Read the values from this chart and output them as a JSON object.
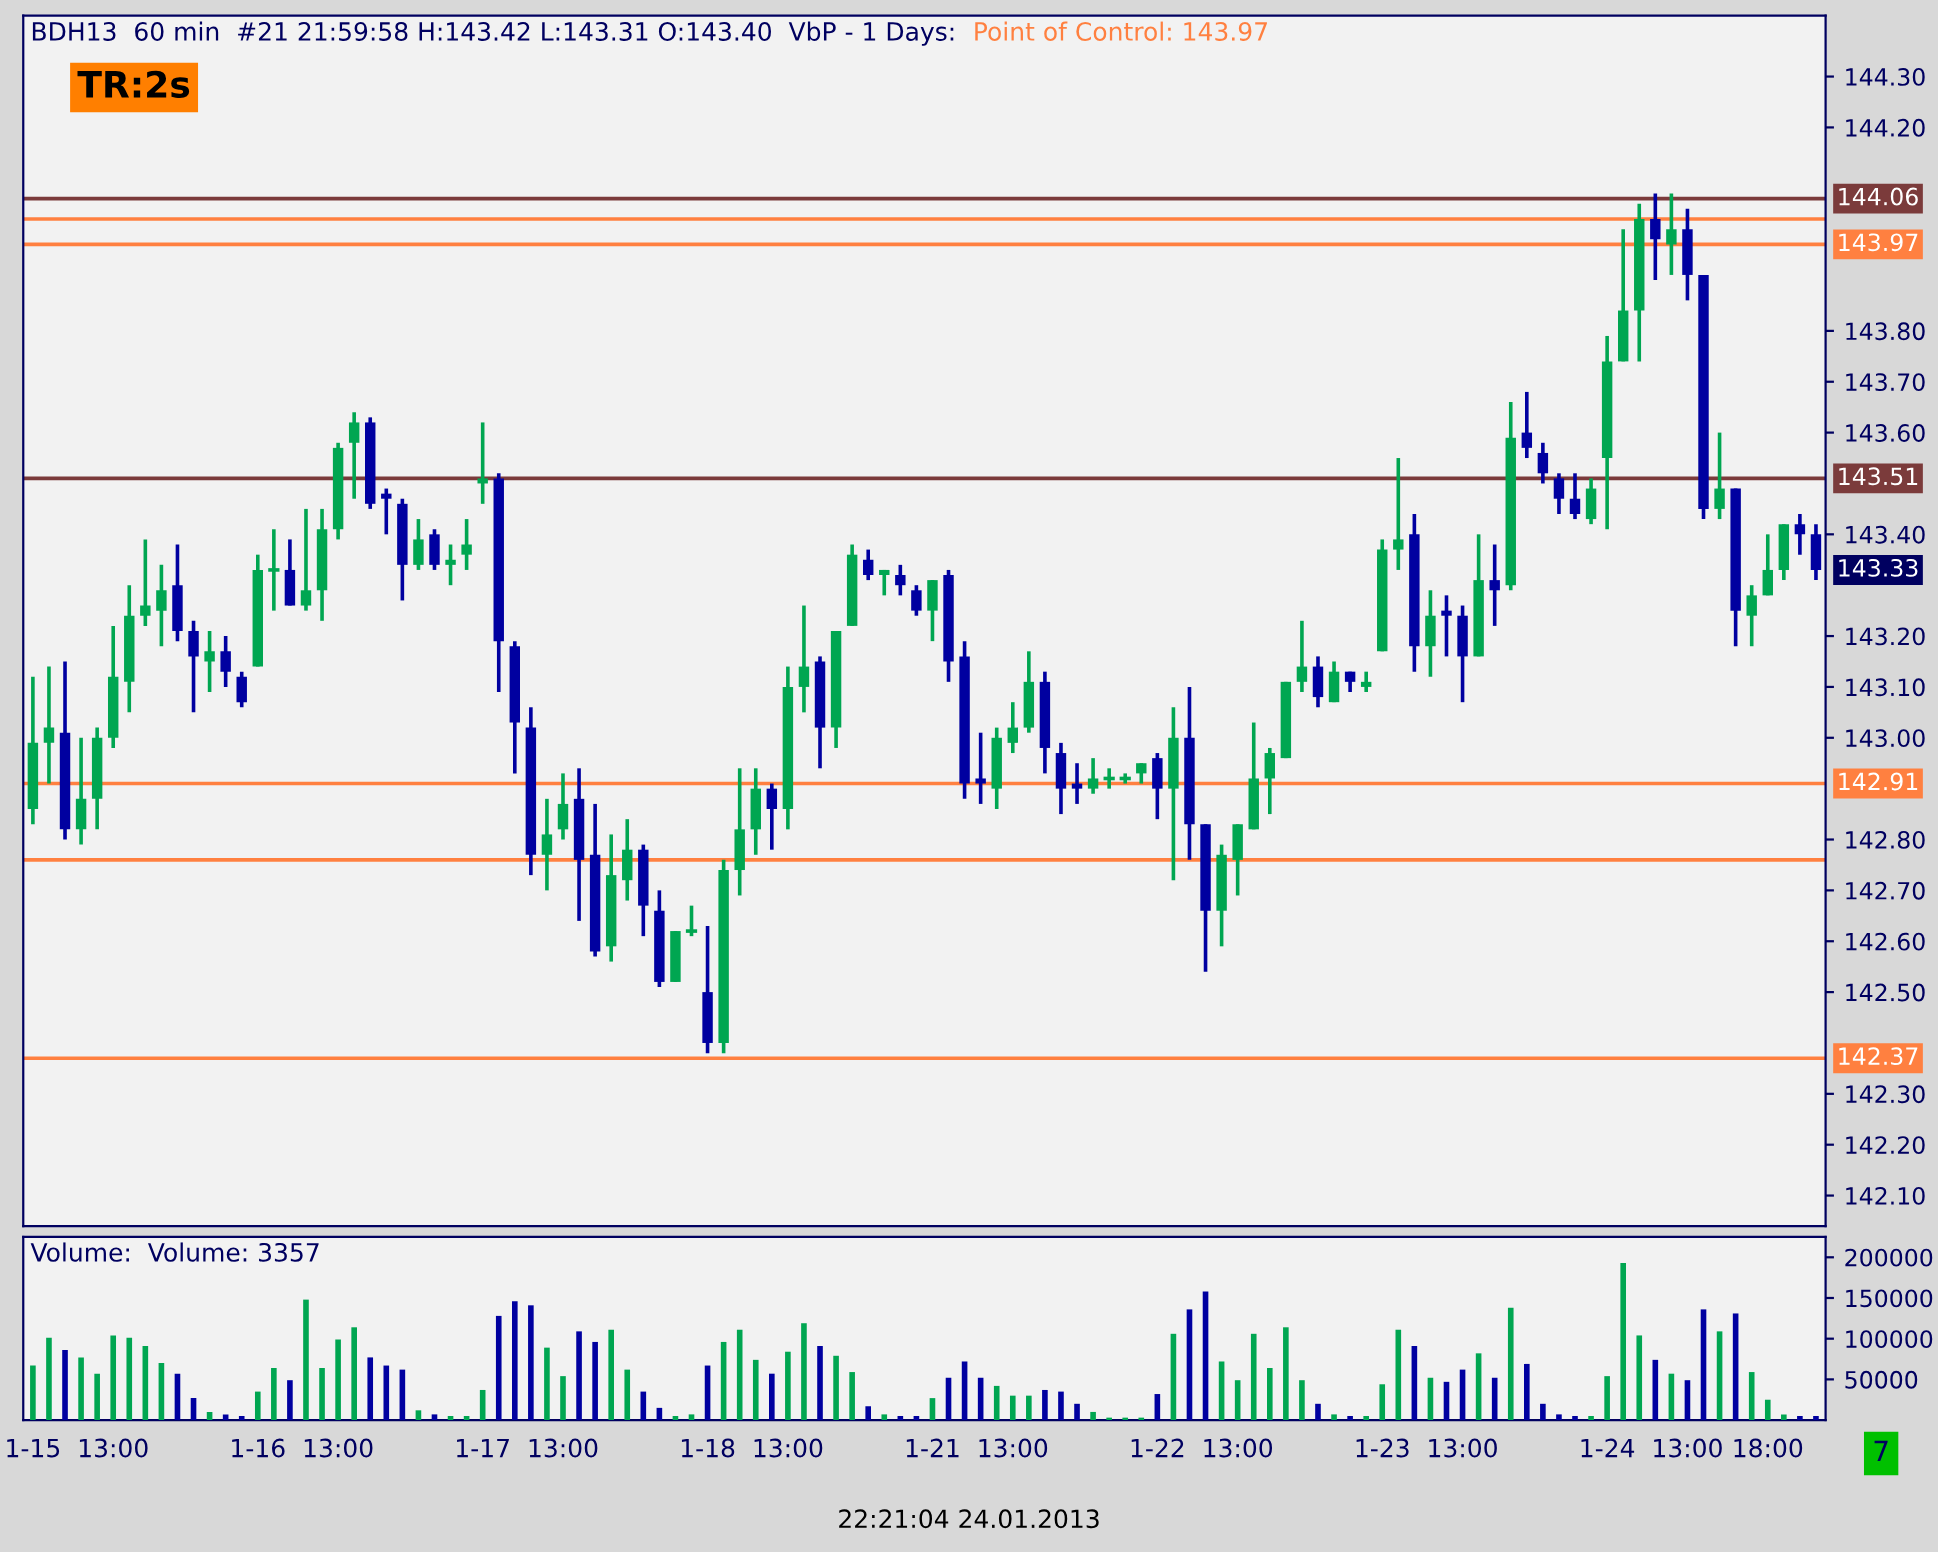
{
  "chart_data": [
    {
      "type": "candlestick",
      "title": "BDH13  60 min  #21 21:59:58 H:143.42 L:143.31 O:143.40  VbP - 1 Days:",
      "categories": [
        null,
        null,
        null,
        null,
        null,
        null,
        null,
        null,
        null,
        null,
        null,
        null,
        null,
        null,
        null,
        null,
        null,
        null,
        null,
        null,
        null,
        null,
        null,
        null,
        null,
        null,
        null,
        null,
        null,
        null,
        null,
        null,
        null,
        null,
        null,
        null,
        null,
        null,
        null,
        null,
        null,
        null,
        null,
        null,
        null,
        null,
        null,
        null,
        null,
        null,
        null,
        null,
        null,
        null,
        null,
        null,
        null,
        null,
        null,
        null,
        null,
        null,
        null,
        null,
        null,
        null,
        null,
        null,
        null,
        null,
        null,
        null,
        null,
        null,
        null,
        null,
        null,
        null,
        null,
        null,
        null,
        null,
        null,
        null,
        null,
        null,
        null,
        null,
        null,
        null,
        null,
        null,
        null,
        null,
        null,
        null,
        null,
        null,
        null,
        null,
        null,
        null,
        null,
        null,
        null,
        null,
        null,
        null,
        null,
        null,
        null,
        null
      ],
      "ohlc": [
        [
          142.86,
          143.12,
          142.83,
          142.99
        ],
        [
          142.99,
          143.14,
          142.91,
          143.02
        ],
        [
          143.01,
          143.15,
          142.8,
          142.82
        ],
        [
          142.82,
          143.0,
          142.79,
          142.88
        ],
        [
          142.88,
          143.02,
          142.82,
          143.0
        ],
        [
          143.0,
          143.22,
          142.98,
          143.12
        ],
        [
          143.11,
          143.3,
          143.05,
          143.24
        ],
        [
          143.24,
          143.39,
          143.22,
          143.26
        ],
        [
          143.25,
          143.34,
          143.18,
          143.29
        ],
        [
          143.3,
          143.38,
          143.19,
          143.21
        ],
        [
          143.21,
          143.23,
          143.05,
          143.16
        ],
        [
          143.15,
          143.21,
          143.09,
          143.17
        ],
        [
          143.17,
          143.2,
          143.1,
          143.13
        ],
        [
          143.12,
          143.13,
          143.06,
          143.07
        ],
        [
          143.14,
          143.36,
          143.14,
          143.33
        ],
        [
          143.33,
          143.41,
          143.25,
          143.33
        ],
        [
          143.33,
          143.39,
          143.26,
          143.26
        ],
        [
          143.26,
          143.45,
          143.25,
          143.29
        ],
        [
          143.29,
          143.45,
          143.23,
          143.41
        ],
        [
          143.41,
          143.58,
          143.39,
          143.57
        ],
        [
          143.58,
          143.64,
          143.47,
          143.62
        ],
        [
          143.62,
          143.63,
          143.45,
          143.46
        ],
        [
          143.48,
          143.49,
          143.4,
          143.47
        ],
        [
          143.46,
          143.47,
          143.27,
          143.34
        ],
        [
          143.34,
          143.43,
          143.33,
          143.39
        ],
        [
          143.4,
          143.41,
          143.33,
          143.34
        ],
        [
          143.34,
          143.38,
          143.3,
          143.35
        ],
        [
          143.36,
          143.43,
          143.33,
          143.38
        ],
        [
          143.5,
          143.62,
          143.46,
          143.51
        ],
        [
          143.51,
          143.52,
          143.09,
          143.19
        ],
        [
          143.18,
          143.19,
          142.93,
          143.03
        ],
        [
          143.02,
          143.06,
          142.73,
          142.77
        ],
        [
          142.77,
          142.88,
          142.7,
          142.81
        ],
        [
          142.82,
          142.93,
          142.8,
          142.87
        ],
        [
          142.88,
          142.94,
          142.64,
          142.76
        ],
        [
          142.77,
          142.87,
          142.57,
          142.58
        ],
        [
          142.59,
          142.81,
          142.56,
          142.73
        ],
        [
          142.72,
          142.84,
          142.68,
          142.78
        ],
        [
          142.78,
          142.79,
          142.61,
          142.67
        ],
        [
          142.66,
          142.7,
          142.51,
          142.52
        ],
        [
          142.52,
          142.62,
          142.52,
          142.62
        ],
        [
          142.62,
          142.67,
          142.61,
          142.62
        ],
        [
          142.5,
          142.63,
          142.38,
          142.4
        ],
        [
          142.4,
          142.76,
          142.38,
          142.74
        ],
        [
          142.74,
          142.94,
          142.69,
          142.82
        ],
        [
          142.82,
          142.94,
          142.77,
          142.9
        ],
        [
          142.9,
          142.91,
          142.78,
          142.86
        ],
        [
          142.86,
          143.14,
          142.82,
          143.1
        ],
        [
          143.1,
          143.26,
          143.05,
          143.14
        ],
        [
          143.15,
          143.16,
          142.94,
          143.02
        ],
        [
          143.02,
          143.21,
          142.98,
          143.21
        ],
        [
          143.22,
          143.38,
          143.22,
          143.36
        ],
        [
          143.35,
          143.37,
          143.31,
          143.32
        ],
        [
          143.32,
          143.33,
          143.28,
          143.33
        ],
        [
          143.32,
          143.34,
          143.28,
          143.3
        ],
        [
          143.29,
          143.3,
          143.24,
          143.25
        ],
        [
          143.25,
          143.31,
          143.19,
          143.31
        ],
        [
          143.32,
          143.33,
          143.11,
          143.15
        ],
        [
          143.16,
          143.19,
          142.88,
          142.91
        ],
        [
          142.92,
          143.01,
          142.87,
          142.91
        ],
        [
          142.9,
          143.02,
          142.86,
          143.0
        ],
        [
          142.99,
          143.07,
          142.97,
          143.02
        ],
        [
          143.02,
          143.17,
          143.01,
          143.11
        ],
        [
          143.11,
          143.13,
          142.93,
          142.98
        ],
        [
          142.97,
          142.99,
          142.85,
          142.9
        ],
        [
          142.91,
          142.95,
          142.87,
          142.9
        ],
        [
          142.9,
          142.96,
          142.89,
          142.92
        ],
        [
          142.92,
          142.94,
          142.9,
          142.92
        ],
        [
          142.92,
          142.93,
          142.91,
          142.92
        ],
        [
          142.93,
          142.95,
          142.91,
          142.95
        ],
        [
          142.96,
          142.97,
          142.84,
          142.9
        ],
        [
          142.9,
          143.06,
          142.72,
          143.0
        ],
        [
          143.0,
          143.1,
          142.76,
          142.83
        ],
        [
          142.83,
          142.83,
          142.54,
          142.66
        ],
        [
          142.66,
          142.79,
          142.59,
          142.77
        ],
        [
          142.76,
          142.83,
          142.69,
          142.83
        ],
        [
          142.82,
          143.03,
          142.82,
          142.92
        ],
        [
          142.92,
          142.98,
          142.85,
          142.97
        ],
        [
          142.96,
          143.11,
          142.96,
          143.11
        ],
        [
          143.11,
          143.23,
          143.09,
          143.14
        ],
        [
          143.14,
          143.16,
          143.06,
          143.08
        ],
        [
          143.07,
          143.15,
          143.07,
          143.13
        ],
        [
          143.13,
          143.13,
          143.09,
          143.11
        ],
        [
          143.1,
          143.13,
          143.09,
          143.11
        ],
        [
          143.17,
          143.39,
          143.17,
          143.37
        ],
        [
          143.37,
          143.55,
          143.33,
          143.39
        ],
        [
          143.4,
          143.44,
          143.13,
          143.18
        ],
        [
          143.18,
          143.29,
          143.12,
          143.24
        ],
        [
          143.25,
          143.28,
          143.16,
          143.24
        ],
        [
          143.24,
          143.26,
          143.07,
          143.16
        ],
        [
          143.16,
          143.4,
          143.16,
          143.31
        ],
        [
          143.31,
          143.38,
          143.22,
          143.29
        ],
        [
          143.3,
          143.66,
          143.29,
          143.59
        ],
        [
          143.6,
          143.68,
          143.55,
          143.57
        ],
        [
          143.56,
          143.58,
          143.5,
          143.52
        ],
        [
          143.51,
          143.52,
          143.44,
          143.47
        ],
        [
          143.47,
          143.52,
          143.43,
          143.44
        ],
        [
          143.43,
          143.51,
          143.42,
          143.49
        ],
        [
          143.55,
          143.79,
          143.41,
          143.74
        ],
        [
          143.74,
          144.0,
          143.74,
          143.84
        ],
        [
          143.84,
          144.05,
          143.74,
          144.02
        ],
        [
          144.02,
          144.07,
          143.9,
          143.98
        ],
        [
          143.97,
          144.07,
          143.91,
          144.0
        ],
        [
          144.0,
          144.04,
          143.86,
          143.91
        ],
        [
          143.91,
          143.91,
          143.43,
          143.45
        ],
        [
          143.45,
          143.6,
          143.43,
          143.49
        ],
        [
          143.49,
          143.49,
          143.18,
          143.25
        ],
        [
          143.24,
          143.3,
          143.18,
          143.28
        ],
        [
          143.28,
          143.4,
          143.28,
          143.33
        ],
        [
          143.33,
          143.42,
          143.31,
          143.42
        ],
        [
          143.42,
          143.44,
          143.36,
          143.4
        ],
        [
          143.4,
          143.42,
          143.31,
          143.33
        ]
      ],
      "colors": [
        "#00a651",
        "#00a651",
        "#0000a0",
        "#00a651",
        "#00a651",
        "#00a651",
        "#00a651",
        "#00a651",
        "#00a651",
        "#0000a0",
        "#0000a0",
        "#00a651",
        "#0000a0",
        "#0000a0",
        "#00a651",
        "#00a651",
        "#0000a0",
        "#00a651",
        "#00a651",
        "#00a651",
        "#00a651",
        "#0000a0",
        "#0000a0",
        "#0000a0",
        "#00a651",
        "#0000a0",
        "#00a651",
        "#00a651",
        "#00a651",
        "#0000a0",
        "#0000a0",
        "#0000a0",
        "#00a651",
        "#00a651",
        "#0000a0",
        "#0000a0",
        "#00a651",
        "#00a651",
        "#0000a0",
        "#0000a0",
        "#00a651",
        "#00a651",
        "#0000a0",
        "#00a651",
        "#00a651",
        "#00a651",
        "#0000a0",
        "#00a651",
        "#00a651",
        "#0000a0",
        "#00a651",
        "#00a651",
        "#0000a0",
        "#00a651",
        "#0000a0",
        "#0000a0",
        "#00a651",
        "#0000a0",
        "#0000a0",
        "#0000a0",
        "#00a651",
        "#00a651",
        "#00a651",
        "#0000a0",
        "#0000a0",
        "#0000a0",
        "#00a651",
        "#00a651",
        "#00a651",
        "#00a651",
        "#0000a0",
        "#00a651",
        "#0000a0",
        "#0000a0",
        "#00a651",
        "#00a651",
        "#00a651",
        "#00a651",
        "#00a651",
        "#00a651",
        "#0000a0",
        "#00a651",
        "#0000a0",
        "#00a651",
        "#00a651",
        "#00a651",
        "#0000a0",
        "#00a651",
        "#0000a0",
        "#0000a0",
        "#00a651",
        "#0000a0",
        "#00a651",
        "#0000a0",
        "#0000a0",
        "#0000a0",
        "#0000a0",
        "#00a651",
        "#00a651",
        "#00a651",
        "#00a651",
        "#0000a0",
        "#00a651",
        "#0000a0",
        "#0000a0",
        "#00a651",
        "#0000a0",
        "#00a651",
        "#00a651",
        "#00a651",
        "#0000a0",
        "#0000a0"
      ],
      "ylim": [
        142.04,
        144.42
      ],
      "yticks": [
        {
          "value": 142.1,
          "label": "142.10"
        },
        {
          "value": 142.2,
          "label": "142.20"
        },
        {
          "value": 142.3,
          "label": "142.30"
        },
        {
          "value": 142.5,
          "label": "142.50"
        },
        {
          "value": 142.6,
          "label": "142.60"
        },
        {
          "value": 142.7,
          "label": "142.70"
        },
        {
          "value": 142.8,
          "label": "142.80"
        },
        {
          "value": 143.0,
          "label": "143.00"
        },
        {
          "value": 143.1,
          "label": "143.10"
        },
        {
          "value": 143.2,
          "label": "143.20"
        },
        {
          "value": 143.4,
          "label": "143.40"
        },
        {
          "value": 143.6,
          "label": "143.60"
        },
        {
          "value": 143.7,
          "label": "143.70"
        },
        {
          "value": 143.8,
          "label": "143.80"
        },
        {
          "value": 144.2,
          "label": "144.20"
        },
        {
          "value": 144.3,
          "label": "144.30"
        }
      ],
      "tick_labels": "y",
      "grid": false,
      "ref_lines": [
        {
          "axis": "y",
          "value": 144.06,
          "label": "144.06",
          "color": "#7b3b3b"
        },
        {
          "axis": "y",
          "value": 143.97,
          "label": "143.97",
          "color": "#ff8040"
        },
        {
          "axis": "y",
          "value": 143.51,
          "label": "143.51",
          "color": "#7b3b3b"
        },
        {
          "axis": "y",
          "value": 142.91,
          "label": "142.91",
          "color": "#ff8040"
        },
        {
          "axis": "y",
          "value": 142.37,
          "label": "142.37",
          "color": "#ff8040"
        },
        {
          "axis": "y",
          "value": 144.02,
          "color": "#ff8040"
        },
        {
          "axis": "y",
          "value": 142.76,
          "color": "#ff8040"
        }
      ],
      "annotations": [
        "Point of Control: 143.97",
        "TR:2s",
        "143.33"
      ]
    },
    {
      "type": "bar",
      "title": "Volume:  Volume: 3357",
      "categories": [
        "1-15",
        null,
        null,
        null,
        null,
        "13:00",
        null,
        null,
        null,
        null,
        null,
        null,
        null,
        null,
        "1-16",
        null,
        null,
        null,
        null,
        "13:00",
        null,
        null,
        null,
        null,
        null,
        null,
        null,
        null,
        "1-17",
        null,
        null,
        null,
        null,
        "13:00",
        null,
        null,
        null,
        null,
        null,
        null,
        null,
        null,
        "1-18",
        null,
        null,
        null,
        null,
        "13:00",
        null,
        null,
        null,
        null,
        null,
        null,
        null,
        null,
        "1-21",
        null,
        null,
        null,
        null,
        "13:00",
        null,
        null,
        null,
        null,
        null,
        null,
        null,
        null,
        "1-22",
        null,
        null,
        null,
        null,
        "13:00",
        null,
        null,
        null,
        null,
        null,
        null,
        null,
        null,
        "1-23",
        null,
        null,
        null,
        null,
        "13:00",
        null,
        null,
        null,
        null,
        null,
        null,
        null,
        null,
        "1-24",
        null,
        null,
        null,
        null,
        "13:00",
        null,
        null,
        null,
        null,
        "18:00",
        null,
        null,
        null
      ],
      "values": [
        67000,
        101000,
        86000,
        77000,
        57000,
        104000,
        101000,
        91000,
        70000,
        57000,
        27000,
        10000,
        7000,
        5000,
        35000,
        64000,
        49000,
        148000,
        64000,
        99000,
        114000,
        77000,
        67000,
        62000,
        12000,
        7000,
        5000,
        5000,
        37000,
        128000,
        146000,
        141000,
        89000,
        54000,
        109000,
        96000,
        111000,
        62000,
        35000,
        15000,
        5000,
        7000,
        67000,
        96000,
        111000,
        74000,
        57000,
        84000,
        119000,
        91000,
        79000,
        59000,
        17000,
        7000,
        5000,
        5000,
        27000,
        52000,
        72000,
        52000,
        42000,
        30000,
        30000,
        37000,
        35000,
        20000,
        10000,
        3000,
        3000,
        3000,
        32000,
        106000,
        136000,
        158000,
        72000,
        49000,
        106000,
        64000,
        114000,
        49000,
        20000,
        7000,
        5000,
        5000,
        44000,
        111000,
        91000,
        52000,
        47000,
        62000,
        82000,
        52000,
        138000,
        69000,
        20000,
        7000,
        5000,
        5000,
        54000,
        193000,
        104000,
        74000,
        57000,
        49000,
        136000,
        109000,
        131000,
        59000,
        25000,
        7000,
        5000,
        5000
      ],
      "colors": [
        "#00a651",
        "#00a651",
        "#0000a0",
        "#00a651",
        "#00a651",
        "#00a651",
        "#00a651",
        "#00a651",
        "#00a651",
        "#0000a0",
        "#0000a0",
        "#00a651",
        "#0000a0",
        "#0000a0",
        "#00a651",
        "#00a651",
        "#0000a0",
        "#00a651",
        "#00a651",
        "#00a651",
        "#00a651",
        "#0000a0",
        "#0000a0",
        "#0000a0",
        "#00a651",
        "#0000a0",
        "#00a651",
        "#00a651",
        "#00a651",
        "#0000a0",
        "#0000a0",
        "#0000a0",
        "#00a651",
        "#00a651",
        "#0000a0",
        "#0000a0",
        "#00a651",
        "#00a651",
        "#0000a0",
        "#0000a0",
        "#00a651",
        "#00a651",
        "#0000a0",
        "#00a651",
        "#00a651",
        "#00a651",
        "#0000a0",
        "#00a651",
        "#00a651",
        "#0000a0",
        "#00a651",
        "#00a651",
        "#0000a0",
        "#00a651",
        "#0000a0",
        "#0000a0",
        "#00a651",
        "#0000a0",
        "#0000a0",
        "#0000a0",
        "#00a651",
        "#00a651",
        "#00a651",
        "#0000a0",
        "#0000a0",
        "#0000a0",
        "#00a651",
        "#00a651",
        "#00a651",
        "#00a651",
        "#0000a0",
        "#00a651",
        "#0000a0",
        "#0000a0",
        "#00a651",
        "#00a651",
        "#00a651",
        "#00a651",
        "#00a651",
        "#00a651",
        "#0000a0",
        "#00a651",
        "#0000a0",
        "#00a651",
        "#00a651",
        "#00a651",
        "#0000a0",
        "#00a651",
        "#0000a0",
        "#0000a0",
        "#00a651",
        "#0000a0",
        "#00a651",
        "#0000a0",
        "#0000a0",
        "#0000a0",
        "#0000a0",
        "#00a651",
        "#00a651",
        "#00a651",
        "#00a651",
        "#0000a0",
        "#00a651",
        "#0000a0",
        "#0000a0",
        "#00a651",
        "#0000a0",
        "#00a651",
        "#00a651",
        "#00a651",
        "#0000a0",
        "#0000a0"
      ],
      "ylim": [
        0,
        225000
      ],
      "yticks": [
        50000,
        100000,
        150000,
        200000
      ],
      "grid": false,
      "annotations": [
        "22:21:04 24.01.2013",
        "7"
      ]
    }
  ]
}
